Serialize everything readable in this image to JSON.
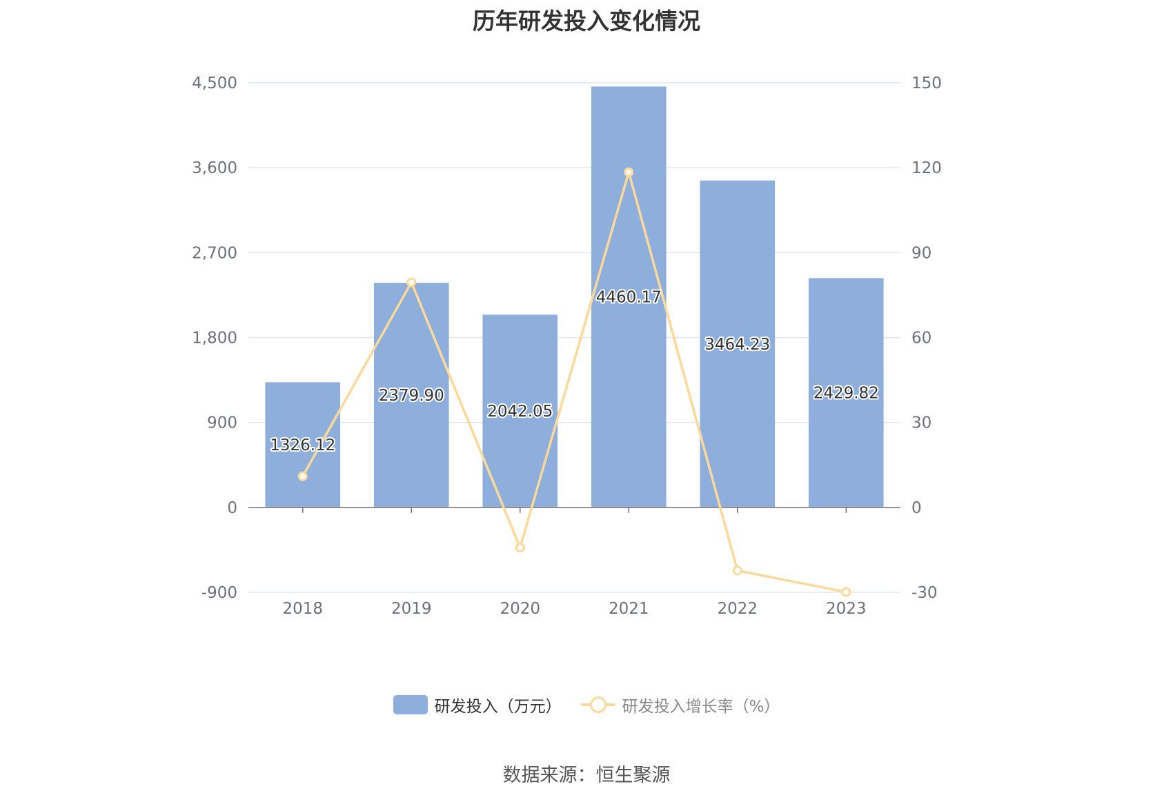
{
  "chart_data": {
    "type": "bar",
    "title": "历年研发投入变化情况",
    "categories": [
      "2018",
      "2019",
      "2020",
      "2021",
      "2022",
      "2023"
    ],
    "series": [
      {
        "name": "研发投入（万元）",
        "type": "bar",
        "axis": "left",
        "color": "#8eaedb",
        "values": [
          1326.12,
          2379.9,
          2042.05,
          4460.17,
          3464.23,
          2429.82
        ],
        "labels": [
          "1326.12",
          "2379.90",
          "2042.05",
          "4460.17",
          "3464.23",
          "2429.82"
        ]
      },
      {
        "name": "研发投入增长率（%）",
        "type": "line",
        "axis": "right",
        "color": "#fbd99a",
        "values": [
          11.0,
          79.5,
          -14.2,
          118.4,
          -22.3,
          -29.9
        ]
      }
    ],
    "y_left": {
      "min": -900,
      "max": 4500,
      "ticks": [
        "4,500",
        "3,600",
        "2,700",
        "1,800",
        "900",
        "0",
        "-900"
      ],
      "tick_values": [
        4500,
        3600,
        2700,
        1800,
        900,
        0,
        -900
      ]
    },
    "y_right": {
      "min": -30,
      "max": 150,
      "ticks": [
        "150",
        "120",
        "90",
        "60",
        "30",
        "0",
        "-30"
      ],
      "tick_values": [
        150,
        120,
        90,
        60,
        30,
        0,
        -30
      ]
    },
    "grid": true,
    "legend_position": "bottom"
  },
  "footer": {
    "source": "数据来源：恒生聚源"
  }
}
